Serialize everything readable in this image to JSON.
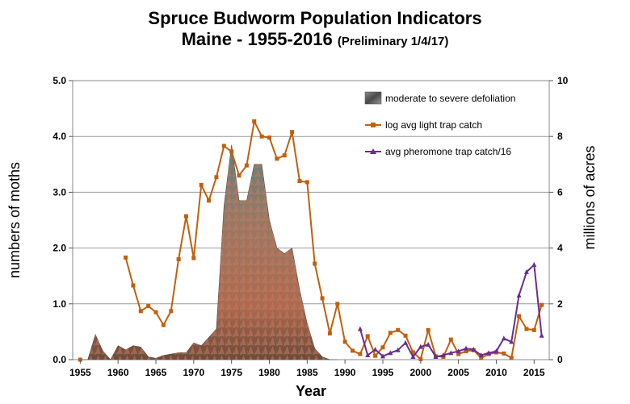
{
  "chart_data": {
    "type": "line",
    "title_line1": "Spruce Budworm Population Indicators",
    "title_line2": "Maine - 1955-2016",
    "title_note": "(Preliminary 1/4/17)",
    "xlabel": "Year",
    "ylabel_left": "numbers of moths",
    "ylabel_right": "millions of acres",
    "xlim": [
      1954,
      2017
    ],
    "ylim_left": [
      0,
      5
    ],
    "ylim_right": [
      0,
      10
    ],
    "x_ticks": [
      "1955",
      "1960",
      "1965",
      "1970",
      "1975",
      "1980",
      "1985",
      "1990",
      "1995",
      "2000",
      "2005",
      "2010",
      "2015"
    ],
    "y_ticks_left": [
      "0.0",
      "1.0",
      "2.0",
      "3.0",
      "4.0",
      "5.0"
    ],
    "y_ticks_right": [
      "0",
      "2",
      "4",
      "6",
      "8",
      "10"
    ],
    "grid": "horizontal",
    "legend_position": "top-right",
    "series": [
      {
        "name": "moderate to severe defoliation",
        "kind": "area",
        "axis": "right",
        "color": "#a06a50",
        "x": [
          1955,
          1956,
          1957,
          1958,
          1959,
          1960,
          1961,
          1962,
          1963,
          1964,
          1965,
          1966,
          1967,
          1968,
          1969,
          1970,
          1971,
          1972,
          1973,
          1974,
          1975,
          1976,
          1977,
          1978,
          1979,
          1980,
          1981,
          1982,
          1983,
          1984,
          1985,
          1986,
          1987,
          1988,
          1989
        ],
        "values": [
          0,
          0,
          0.9,
          0.3,
          0,
          0.5,
          0.35,
          0.5,
          0.45,
          0.1,
          0.05,
          0.15,
          0.2,
          0.25,
          0.25,
          0.6,
          0.5,
          0.8,
          1.1,
          5.5,
          7.7,
          5.7,
          5.7,
          7.0,
          7.0,
          5.0,
          4.0,
          3.8,
          4.0,
          2.5,
          1.3,
          0.4,
          0.1,
          0,
          0
        ]
      },
      {
        "name": "log avg light trap catch",
        "kind": "line",
        "axis": "left",
        "color": "#c0600d",
        "marker": "square",
        "x": [
          1961,
          1962,
          1963,
          1964,
          1965,
          1966,
          1967,
          1968,
          1969,
          1970,
          1971,
          1972,
          1973,
          1974,
          1975,
          1976,
          1977,
          1978,
          1979,
          1980,
          1981,
          1982,
          1983,
          1984,
          1985,
          1986,
          1987,
          1988,
          1989,
          1990,
          1991,
          1992,
          1993,
          1994,
          1995,
          1996,
          1997,
          1998,
          1999,
          2000,
          2001,
          2002,
          2003,
          2004,
          2005,
          2006,
          2007,
          2008,
          2009,
          2010,
          2011,
          2012,
          2013,
          2014,
          2015,
          2016
        ],
        "values": [
          1.83,
          1.33,
          0.87,
          0.96,
          0.85,
          0.62,
          0.87,
          1.8,
          2.57,
          1.82,
          3.13,
          2.85,
          3.27,
          3.83,
          3.73,
          3.3,
          3.48,
          4.27,
          4.0,
          3.98,
          3.6,
          3.66,
          4.08,
          3.2,
          3.18,
          1.72,
          1.1,
          0.47,
          1.0,
          0.32,
          0.16,
          0.1,
          0.42,
          0.07,
          0.22,
          0.48,
          0.53,
          0.43,
          0.13,
          0.01,
          0.53,
          0.06,
          0.05,
          0.36,
          0.1,
          0.15,
          0.17,
          0.03,
          0.1,
          0.13,
          0.11,
          0.03,
          0.78,
          0.55,
          0.53,
          0.98
        ]
      },
      {
        "name": "avg pheromone trap catch/16",
        "kind": "line",
        "axis": "left",
        "color": "#6a2c91",
        "marker": "triangle",
        "x": [
          1992,
          1993,
          1994,
          1995,
          1996,
          1997,
          1998,
          1999,
          2000,
          2001,
          2002,
          2003,
          2004,
          2005,
          2006,
          2007,
          2008,
          2009,
          2010,
          2011,
          2012,
          2013,
          2014,
          2015,
          2016
        ],
        "values": [
          0.55,
          0.08,
          0.18,
          0.06,
          0.12,
          0.17,
          0.3,
          0.05,
          0.23,
          0.27,
          0.05,
          0.08,
          0.12,
          0.15,
          0.2,
          0.18,
          0.08,
          0.12,
          0.15,
          0.38,
          0.32,
          1.15,
          1.57,
          1.7,
          0.43
        ]
      }
    ]
  }
}
